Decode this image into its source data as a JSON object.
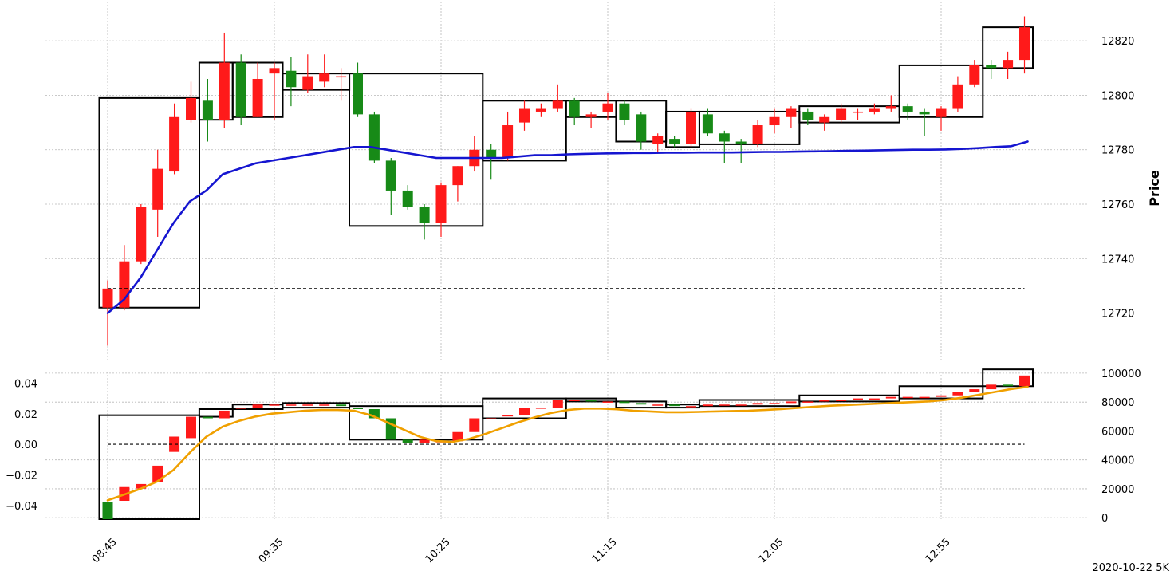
{
  "footer": "2020-10-22 5K",
  "colors": {
    "up": "#ff1a1a",
    "down": "#178a17",
    "wick_up": "#ff1a1a",
    "wick_down": "#178a17",
    "ma_line": "#1515d0",
    "mv_line": "#f0a000",
    "box": "#000000",
    "grid": "#b8b8b8",
    "ref": "#000000"
  },
  "chart_data": [
    {
      "type": "candlestick",
      "ylabel": "Price",
      "ylim": [
        12702,
        12835
      ],
      "yticks": [
        12720,
        12740,
        12760,
        12780,
        12800,
        12820
      ],
      "xticks": [
        {
          "i": 0,
          "label": "08:45"
        },
        {
          "i": 10,
          "label": "09:35"
        },
        {
          "i": 20,
          "label": "10:25"
        },
        {
          "i": 30,
          "label": "11:15"
        },
        {
          "i": 40,
          "label": "12:05"
        },
        {
          "i": 50,
          "label": "12:55"
        }
      ],
      "ohlc": [
        [
          12722,
          12732,
          12708,
          12729
        ],
        [
          12722,
          12745,
          12721,
          12739
        ],
        [
          12739,
          12760,
          12738,
          12759
        ],
        [
          12758,
          12780,
          12748,
          12773
        ],
        [
          12772,
          12797,
          12771,
          12792
        ],
        [
          12791,
          12805,
          12790,
          12799
        ],
        [
          12798,
          12806,
          12783,
          12791
        ],
        [
          12791,
          12823,
          12788,
          12812
        ],
        [
          12812,
          12815,
          12789,
          12792
        ],
        [
          12792,
          12812,
          12792,
          12806
        ],
        [
          12808,
          12812,
          12791,
          12810
        ],
        [
          12809,
          12814,
          12796,
          12803
        ],
        [
          12802,
          12815,
          12801,
          12807
        ],
        [
          12805,
          12815,
          12803,
          12808
        ],
        [
          12807,
          12810,
          12798,
          12807
        ],
        [
          12808,
          12812,
          12792,
          12793
        ],
        [
          12793,
          12794,
          12775,
          12776
        ],
        [
          12776,
          12777,
          12756,
          12765
        ],
        [
          12765,
          12767,
          12758,
          12759
        ],
        [
          12759,
          12760,
          12747,
          12753
        ],
        [
          12753,
          12768,
          12748,
          12767
        ],
        [
          12767,
          12774,
          12761,
          12774
        ],
        [
          12774,
          12785,
          12772,
          12780
        ],
        [
          12780,
          12782,
          12769,
          12777
        ],
        [
          12777,
          12794,
          12776,
          12789
        ],
        [
          12790,
          12798,
          12787,
          12795
        ],
        [
          12794,
          12797,
          12792,
          12795
        ],
        [
          12795,
          12804,
          12794,
          12798
        ],
        [
          12798,
          12799,
          12789,
          12792
        ],
        [
          12792,
          12794,
          12788,
          12793
        ],
        [
          12794,
          12801,
          12791,
          12797
        ],
        [
          12797,
          12798,
          12789,
          12791
        ],
        [
          12793,
          12794,
          12780,
          12783
        ],
        [
          12782,
          12786,
          12779,
          12785
        ],
        [
          12784,
          12785,
          12781,
          12782
        ],
        [
          12782,
          12795,
          12781,
          12794
        ],
        [
          12793,
          12795,
          12785,
          12786
        ],
        [
          12786,
          12787,
          12775,
          12783
        ],
        [
          12783,
          12784,
          12775,
          12782
        ],
        [
          12782,
          12791,
          12781,
          12789
        ],
        [
          12789,
          12795,
          12786,
          12792
        ],
        [
          12792,
          12796,
          12788,
          12795
        ],
        [
          12794,
          12795,
          12789,
          12791
        ],
        [
          12790,
          12793,
          12787,
          12792
        ],
        [
          12791,
          12797,
          12790,
          12795
        ],
        [
          12794,
          12795,
          12791,
          12794
        ],
        [
          12794,
          12797,
          12793,
          12795
        ],
        [
          12795,
          12800,
          12794,
          12796
        ],
        [
          12796,
          12797,
          12791,
          12794
        ],
        [
          12794,
          12795,
          12785,
          12793
        ],
        [
          12792,
          12796,
          12787,
          12795
        ],
        [
          12795,
          12807,
          12794,
          12804
        ],
        [
          12804,
          12813,
          12803,
          12811
        ],
        [
          12811,
          12813,
          12806,
          12810
        ],
        [
          12810,
          12816,
          12806,
          12813
        ],
        [
          12813,
          12829,
          12808,
          12825
        ]
      ],
      "ma_line": [
        12720,
        12725,
        12733,
        12743,
        12753,
        12761,
        12765,
        12771,
        12773,
        12775,
        12776,
        12777,
        12778,
        12779,
        12780,
        12781,
        12781,
        12780,
        12779,
        12778,
        12777,
        12777,
        12777,
        12777,
        12777,
        12777.5,
        12778,
        12778,
        12778.3,
        12778.5,
        12778.6,
        12778.7,
        12778.8,
        12778.8,
        12778.9,
        12778.9,
        12779,
        12779,
        12779,
        12779.1,
        12779.2,
        12779.2,
        12779.3,
        12779.4,
        12779.5,
        12779.6,
        12779.7,
        12779.8,
        12779.9,
        12780,
        12780,
        12780.1,
        12780.3,
        12780.6,
        12781,
        12781.3,
        12783
      ],
      "boxes": [
        {
          "start": 0,
          "end": 5,
          "low": 12722,
          "high": 12799
        },
        {
          "start": 6,
          "end": 7,
          "low": 12791,
          "high": 12812
        },
        {
          "start": 8,
          "end": 10,
          "low": 12792,
          "high": 12812
        },
        {
          "start": 11,
          "end": 14,
          "low": 12802,
          "high": 12808
        },
        {
          "start": 15,
          "end": 22,
          "low": 12752,
          "high": 12808
        },
        {
          "start": 23,
          "end": 27,
          "low": 12776,
          "high": 12798
        },
        {
          "start": 28,
          "end": 30,
          "low": 12792,
          "high": 12798
        },
        {
          "start": 31,
          "end": 33,
          "low": 12783,
          "high": 12798
        },
        {
          "start": 34,
          "end": 35,
          "low": 12781,
          "high": 12794
        },
        {
          "start": 36,
          "end": 41,
          "low": 12782,
          "high": 12794
        },
        {
          "start": 42,
          "end": 47,
          "low": 12790,
          "high": 12796
        },
        {
          "start": 48,
          "end": 52,
          "low": 12792,
          "high": 12811
        },
        {
          "start": 53,
          "end": 55,
          "low": 12810,
          "high": 12825
        }
      ],
      "ref_line": 12729
    },
    {
      "type": "candlestick",
      "ylim_left": [
        -0.049,
        0.047
      ],
      "ylim_right": [
        -1000,
        100500
      ],
      "yticks_left": [
        {
          "v": 0.04,
          "label": "0.04"
        },
        {
          "v": 0.02,
          "label": "0.02"
        },
        {
          "v": 0.0,
          "label": "0.00"
        },
        {
          "v": -0.02,
          "label": "−0.02"
        },
        {
          "v": -0.04,
          "label": "−0.04"
        }
      ],
      "yticks_right": [
        0,
        20000,
        40000,
        60000,
        80000,
        100000
      ],
      "ohlc": [
        [
          -0.038,
          -0.038,
          -0.049,
          -0.049
        ],
        [
          -0.037,
          -0.028,
          -0.037,
          -0.028
        ],
        [
          -0.029,
          -0.026,
          -0.029,
          -0.026
        ],
        [
          -0.025,
          -0.014,
          -0.025,
          -0.014
        ],
        [
          -0.005,
          0.005,
          -0.005,
          0.005
        ],
        [
          0.004,
          0.018,
          0.004,
          0.018
        ],
        [
          0.018,
          0.018,
          0.017,
          0.017
        ],
        [
          0.017,
          0.022,
          0.017,
          0.022
        ],
        [
          0.024,
          0.024,
          0.024,
          0.024
        ],
        [
          0.024,
          0.026,
          0.024,
          0.026
        ],
        [
          0.026,
          0.026,
          0.025,
          0.026
        ],
        [
          0.026,
          0.026,
          0.026,
          0.026
        ],
        [
          0.026,
          0.026,
          0.026,
          0.026
        ],
        [
          0.026,
          0.026,
          0.026,
          0.026
        ],
        [
          0.026,
          0.026,
          0.025,
          0.025
        ],
        [
          0.024,
          0.024,
          0.023,
          0.023
        ],
        [
          0.023,
          0.023,
          0.017,
          0.017
        ],
        [
          0.017,
          0.017,
          0.003,
          0.003
        ],
        [
          0.003,
          0.003,
          0.001,
          0.001
        ],
        [
          0.001,
          0.003,
          0.001,
          0.003
        ],
        [
          0.002,
          0.003,
          0.002,
          0.002
        ],
        [
          0.002,
          0.008,
          0.002,
          0.008
        ],
        [
          0.008,
          0.017,
          0.008,
          0.017
        ],
        [
          0.017,
          0.017,
          0.017,
          0.017
        ],
        [
          0.019,
          0.019,
          0.019,
          0.019
        ],
        [
          0.019,
          0.024,
          0.019,
          0.024
        ],
        [
          0.024,
          0.024,
          0.024,
          0.024
        ],
        [
          0.024,
          0.029,
          0.024,
          0.029
        ],
        [
          0.029,
          0.029,
          0.029,
          0.029
        ],
        [
          0.029,
          0.029,
          0.028,
          0.028
        ],
        [
          0.028,
          0.028,
          0.028,
          0.028
        ],
        [
          0.028,
          0.028,
          0.027,
          0.027
        ],
        [
          0.027,
          0.027,
          0.026,
          0.026
        ],
        [
          0.026,
          0.026,
          0.026,
          0.026
        ],
        [
          0.026,
          0.026,
          0.025,
          0.025
        ],
        [
          0.025,
          0.026,
          0.025,
          0.025
        ],
        [
          0.025,
          0.026,
          0.025,
          0.026
        ],
        [
          0.026,
          0.026,
          0.026,
          0.026
        ],
        [
          0.026,
          0.027,
          0.026,
          0.026
        ],
        [
          0.026,
          0.027,
          0.026,
          0.027
        ],
        [
          0.027,
          0.027,
          0.027,
          0.027
        ],
        [
          0.027,
          0.028,
          0.027,
          0.028
        ],
        [
          0.028,
          0.028,
          0.028,
          0.028
        ],
        [
          0.028,
          0.029,
          0.028,
          0.029
        ],
        [
          0.029,
          0.029,
          0.029,
          0.029
        ],
        [
          0.029,
          0.03,
          0.029,
          0.03
        ],
        [
          0.03,
          0.03,
          0.03,
          0.03
        ],
        [
          0.03,
          0.031,
          0.03,
          0.031
        ],
        [
          0.031,
          0.031,
          0.031,
          0.031
        ],
        [
          0.031,
          0.031,
          0.031,
          0.031
        ],
        [
          0.031,
          0.032,
          0.031,
          0.032
        ],
        [
          0.032,
          0.034,
          0.032,
          0.034
        ],
        [
          0.034,
          0.036,
          0.034,
          0.036
        ],
        [
          0.036,
          0.039,
          0.036,
          0.039
        ],
        [
          0.039,
          0.039,
          0.038,
          0.038
        ],
        [
          0.038,
          0.045,
          0.038,
          0.045
        ]
      ],
      "mv_line": [
        12000,
        16000,
        20000,
        25000,
        33000,
        45000,
        56000,
        63000,
        67000,
        70000,
        72000,
        73000,
        74000,
        74500,
        74500,
        74000,
        71000,
        66000,
        61000,
        56000,
        53000,
        52500,
        54500,
        58000,
        62000,
        66000,
        69500,
        72500,
        74500,
        75500,
        75500,
        75000,
        74000,
        73500,
        73000,
        73000,
        73200,
        73500,
        73800,
        74000,
        74500,
        75200,
        76000,
        76800,
        77500,
        78000,
        78500,
        79000,
        79500,
        80000,
        80500,
        81500,
        83000,
        85000,
        87000,
        89000,
        90500
      ],
      "boxes": [
        {
          "start": 0,
          "end": 5,
          "low": -0.049,
          "high": 0.019
        },
        {
          "start": 6,
          "end": 7,
          "low": 0.018,
          "high": 0.023
        },
        {
          "start": 8,
          "end": 10,
          "low": 0.023,
          "high": 0.026
        },
        {
          "start": 11,
          "end": 14,
          "low": 0.024,
          "high": 0.027
        },
        {
          "start": 15,
          "end": 22,
          "low": 0.003,
          "high": 0.025
        },
        {
          "start": 23,
          "end": 27,
          "low": 0.017,
          "high": 0.03
        },
        {
          "start": 28,
          "end": 30,
          "low": 0.028,
          "high": 0.03
        },
        {
          "start": 31,
          "end": 33,
          "low": 0.024,
          "high": 0.028
        },
        {
          "start": 34,
          "end": 35,
          "low": 0.024,
          "high": 0.026
        },
        {
          "start": 36,
          "end": 41,
          "low": 0.025,
          "high": 0.029
        },
        {
          "start": 42,
          "end": 47,
          "low": 0.028,
          "high": 0.032
        },
        {
          "start": 48,
          "end": 52,
          "low": 0.03,
          "high": 0.038
        },
        {
          "start": 53,
          "end": 55,
          "low": 0.038,
          "high": 0.049
        }
      ],
      "ref_line": 0.0
    }
  ]
}
